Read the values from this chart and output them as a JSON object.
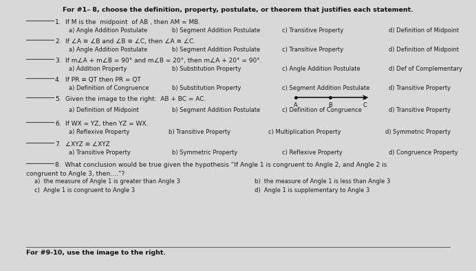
{
  "bg_color": "#d8d8d8",
  "paper_color": "#f0eeeb",
  "title": "For #1– 8, choose the definition, property, postulate, or theorem that justifies each statement.",
  "questions": [
    {
      "num": "1.",
      "statement": "If M is the  midpoint  of AB , then AM = MB.",
      "options": [
        "a) Angle Addition Postulate",
        "b) Segment Addition Postulate",
        "c) Transitive Property",
        "d) Definition of Midpoint"
      ]
    },
    {
      "num": "2.",
      "statement": "If ∠A ≅ ∠B and ∠B ≅ ∠C, then ∠A ≅ ∠C.",
      "options": [
        "a) Angle Addition Postulate",
        "b) Segment Addition Postulate",
        "c) Transitive Property",
        "d) Definition of Midpoint"
      ]
    },
    {
      "num": "3.",
      "statement": "If m∠A + m∠B = 90° and m∠B = 20°, then m∠A + 20° = 90°.",
      "options": [
        "a) Addition Property",
        "b) Substitution Property",
        "c) Angle Addition Postulate",
        "d) Def of Complementary"
      ]
    },
    {
      "num": "4.",
      "statement": "If PR ≅ QT then PR = QT",
      "options": [
        "a) Definition of Congruence",
        "b) Substitution Property",
        "c) Segment Addition Postulate",
        "d) Transitive Property"
      ]
    },
    {
      "num": "5.",
      "statement": "Given the image to the right:  AB + BC = AC.",
      "options": [
        "a) Definition of Midpoint",
        "b) Segment Addition Postulate",
        "c) Definition of Congruence",
        "d) Transitive Property"
      ],
      "has_segment": true
    },
    {
      "num": "6.",
      "statement": "If WX = YZ, then YZ = WX.",
      "options": [
        "a) Reflexive Property",
        "b) Transitive Property",
        "c) Multiplication Property",
        "d) Symmetric Property"
      ]
    },
    {
      "num": "7.",
      "statement": "∠XYZ ≅ ∠XYZ",
      "options": [
        "a) Transitive Property",
        "b) Symmetric Property",
        "c) Reflexive Property",
        "d) Congruence Property"
      ]
    },
    {
      "num": "8.",
      "statement_line1": "8.  What conclusion would be true given the hypothesis “If Angle 1 is congruent to Angle 2, and Angle 2 is",
      "statement_line2": "congruent to Angle 3, then….”?",
      "options_col1": [
        "a)  the measure of Angle 1 is greater than Angle 3",
        "c)  Angle 1 is congruent to Angle 3"
      ],
      "options_col2": [
        "b)  the measure of Angle 1 is less than Angle 3",
        "d)  Angle 1 is supplementary to Angle 3"
      ]
    }
  ],
  "footer": "For #9-10, use the image to the right.",
  "text_color": "#1a1a1a",
  "dark_color": "#111111",
  "line_color": "#444444",
  "title_fs": 6.8,
  "q_fs": 6.5,
  "opt_fs": 6.0,
  "footer_fs": 6.8
}
